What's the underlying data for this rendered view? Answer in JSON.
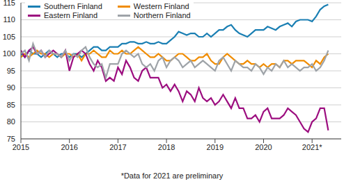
{
  "chart_data": {
    "type": "line",
    "caption": "*Data for 2021 are preliminary",
    "x": [
      2015,
      2015.083,
      2015.167,
      2015.25,
      2015.333,
      2015.417,
      2015.5,
      2015.583,
      2015.667,
      2015.75,
      2015.833,
      2015.917,
      2016,
      2016.083,
      2016.167,
      2016.25,
      2016.333,
      2016.417,
      2016.5,
      2016.583,
      2016.667,
      2016.75,
      2016.833,
      2016.917,
      2017,
      2017.083,
      2017.167,
      2017.25,
      2017.333,
      2017.417,
      2017.5,
      2017.583,
      2017.667,
      2017.75,
      2017.833,
      2017.917,
      2018,
      2018.083,
      2018.167,
      2018.25,
      2018.333,
      2018.417,
      2018.5,
      2018.583,
      2018.667,
      2018.75,
      2018.833,
      2018.917,
      2019,
      2019.083,
      2019.167,
      2019.25,
      2019.333,
      2019.417,
      2019.5,
      2019.583,
      2019.667,
      2019.75,
      2019.833,
      2019.917,
      2020,
      2020.083,
      2020.167,
      2020.25,
      2020.333,
      2020.417,
      2020.5,
      2020.583,
      2020.667,
      2020.75,
      2020.833,
      2020.917,
      2021,
      2021.083,
      2021.167,
      2021.25,
      2021.333
    ],
    "series": [
      {
        "name": "Southern Finland",
        "color": "#1a7fb3",
        "values": [
          100,
          99,
          101,
          100,
          100,
          99,
          100,
          101,
          100,
          99,
          100,
          100,
          99,
          100,
          100,
          99,
          100,
          101,
          102,
          102,
          101,
          101,
          102,
          102,
          102,
          103,
          103,
          103.5,
          103.5,
          103,
          103,
          103.5,
          103,
          103,
          103.5,
          103,
          103,
          104,
          105,
          106.5,
          106,
          105.5,
          106,
          106,
          105,
          105,
          106,
          105,
          106,
          107,
          107,
          108,
          108.5,
          107,
          106,
          105.5,
          105,
          106,
          107,
          107,
          107,
          108,
          107.5,
          107,
          108,
          108.5,
          109,
          108,
          109.5,
          110,
          110,
          110,
          109.5,
          111,
          113,
          114,
          114.5
        ]
      },
      {
        "name": "Western Finland",
        "color": "#f08c00",
        "values": [
          99,
          100,
          99,
          100,
          101,
          100,
          100,
          99,
          100,
          100,
          99,
          100,
          100,
          99,
          100,
          98,
          100,
          100,
          101,
          100,
          99,
          99,
          101,
          100,
          100,
          101,
          100,
          100,
          101,
          102,
          101,
          100,
          99,
          99,
          100,
          99,
          98,
          98,
          99,
          100,
          100,
          99,
          98,
          98,
          99,
          99,
          100,
          98,
          97,
          97,
          99,
          100,
          99,
          98,
          97,
          97,
          98,
          97,
          97,
          96,
          97,
          96,
          97,
          97,
          96,
          98,
          98,
          97,
          98,
          98,
          98,
          97,
          96,
          98,
          97,
          99,
          100
        ]
      },
      {
        "name": "Eastern Finland",
        "color": "#9c0d7f",
        "values": [
          101,
          99,
          101,
          102,
          100,
          101,
          99,
          100,
          101,
          100,
          99,
          101,
          95,
          99,
          100,
          101,
          100,
          97,
          95,
          98,
          96,
          92,
          93,
          92,
          96,
          94,
          98,
          96,
          93,
          92,
          95,
          96,
          93,
          93,
          93,
          90,
          91,
          89,
          91,
          89,
          86,
          89,
          88,
          86,
          90,
          87,
          86,
          87,
          85,
          86,
          88,
          86,
          84,
          87,
          84,
          84,
          81,
          81,
          82,
          80,
          83,
          84,
          81,
          81,
          81,
          82,
          84,
          83,
          82,
          80,
          78,
          77,
          80,
          81,
          84,
          84,
          77.5
        ]
      },
      {
        "name": "Northern Finland",
        "color": "#9ea3a8",
        "values": [
          100,
          101,
          98,
          103,
          100,
          101,
          99,
          101,
          100,
          100,
          99,
          101,
          98,
          100,
          99,
          101,
          102,
          99,
          97,
          96,
          97,
          93,
          97,
          97,
          97,
          100,
          101,
          100,
          99,
          100,
          97,
          96,
          97,
          95,
          98,
          99,
          96,
          98,
          99,
          98,
          96,
          97,
          98,
          96,
          97,
          98,
          97,
          96,
          95,
          98,
          99,
          97,
          95,
          98,
          97,
          96,
          96,
          95,
          97,
          96,
          94,
          96,
          95,
          97,
          96,
          98,
          96,
          97,
          96,
          95,
          96,
          96,
          97,
          95,
          96,
          98,
          101
        ]
      }
    ],
    "xlim": [
      2015,
      2021.6
    ],
    "xticks": [
      2015,
      2016,
      2017,
      2018,
      2019,
      2020,
      {
        "value": 2021,
        "label": "2021*"
      }
    ],
    "ylim": [
      75,
      115
    ],
    "yticks": [
      75,
      80,
      85,
      90,
      95,
      100,
      105,
      110,
      115
    ],
    "grid": true,
    "legend": "upper left"
  }
}
